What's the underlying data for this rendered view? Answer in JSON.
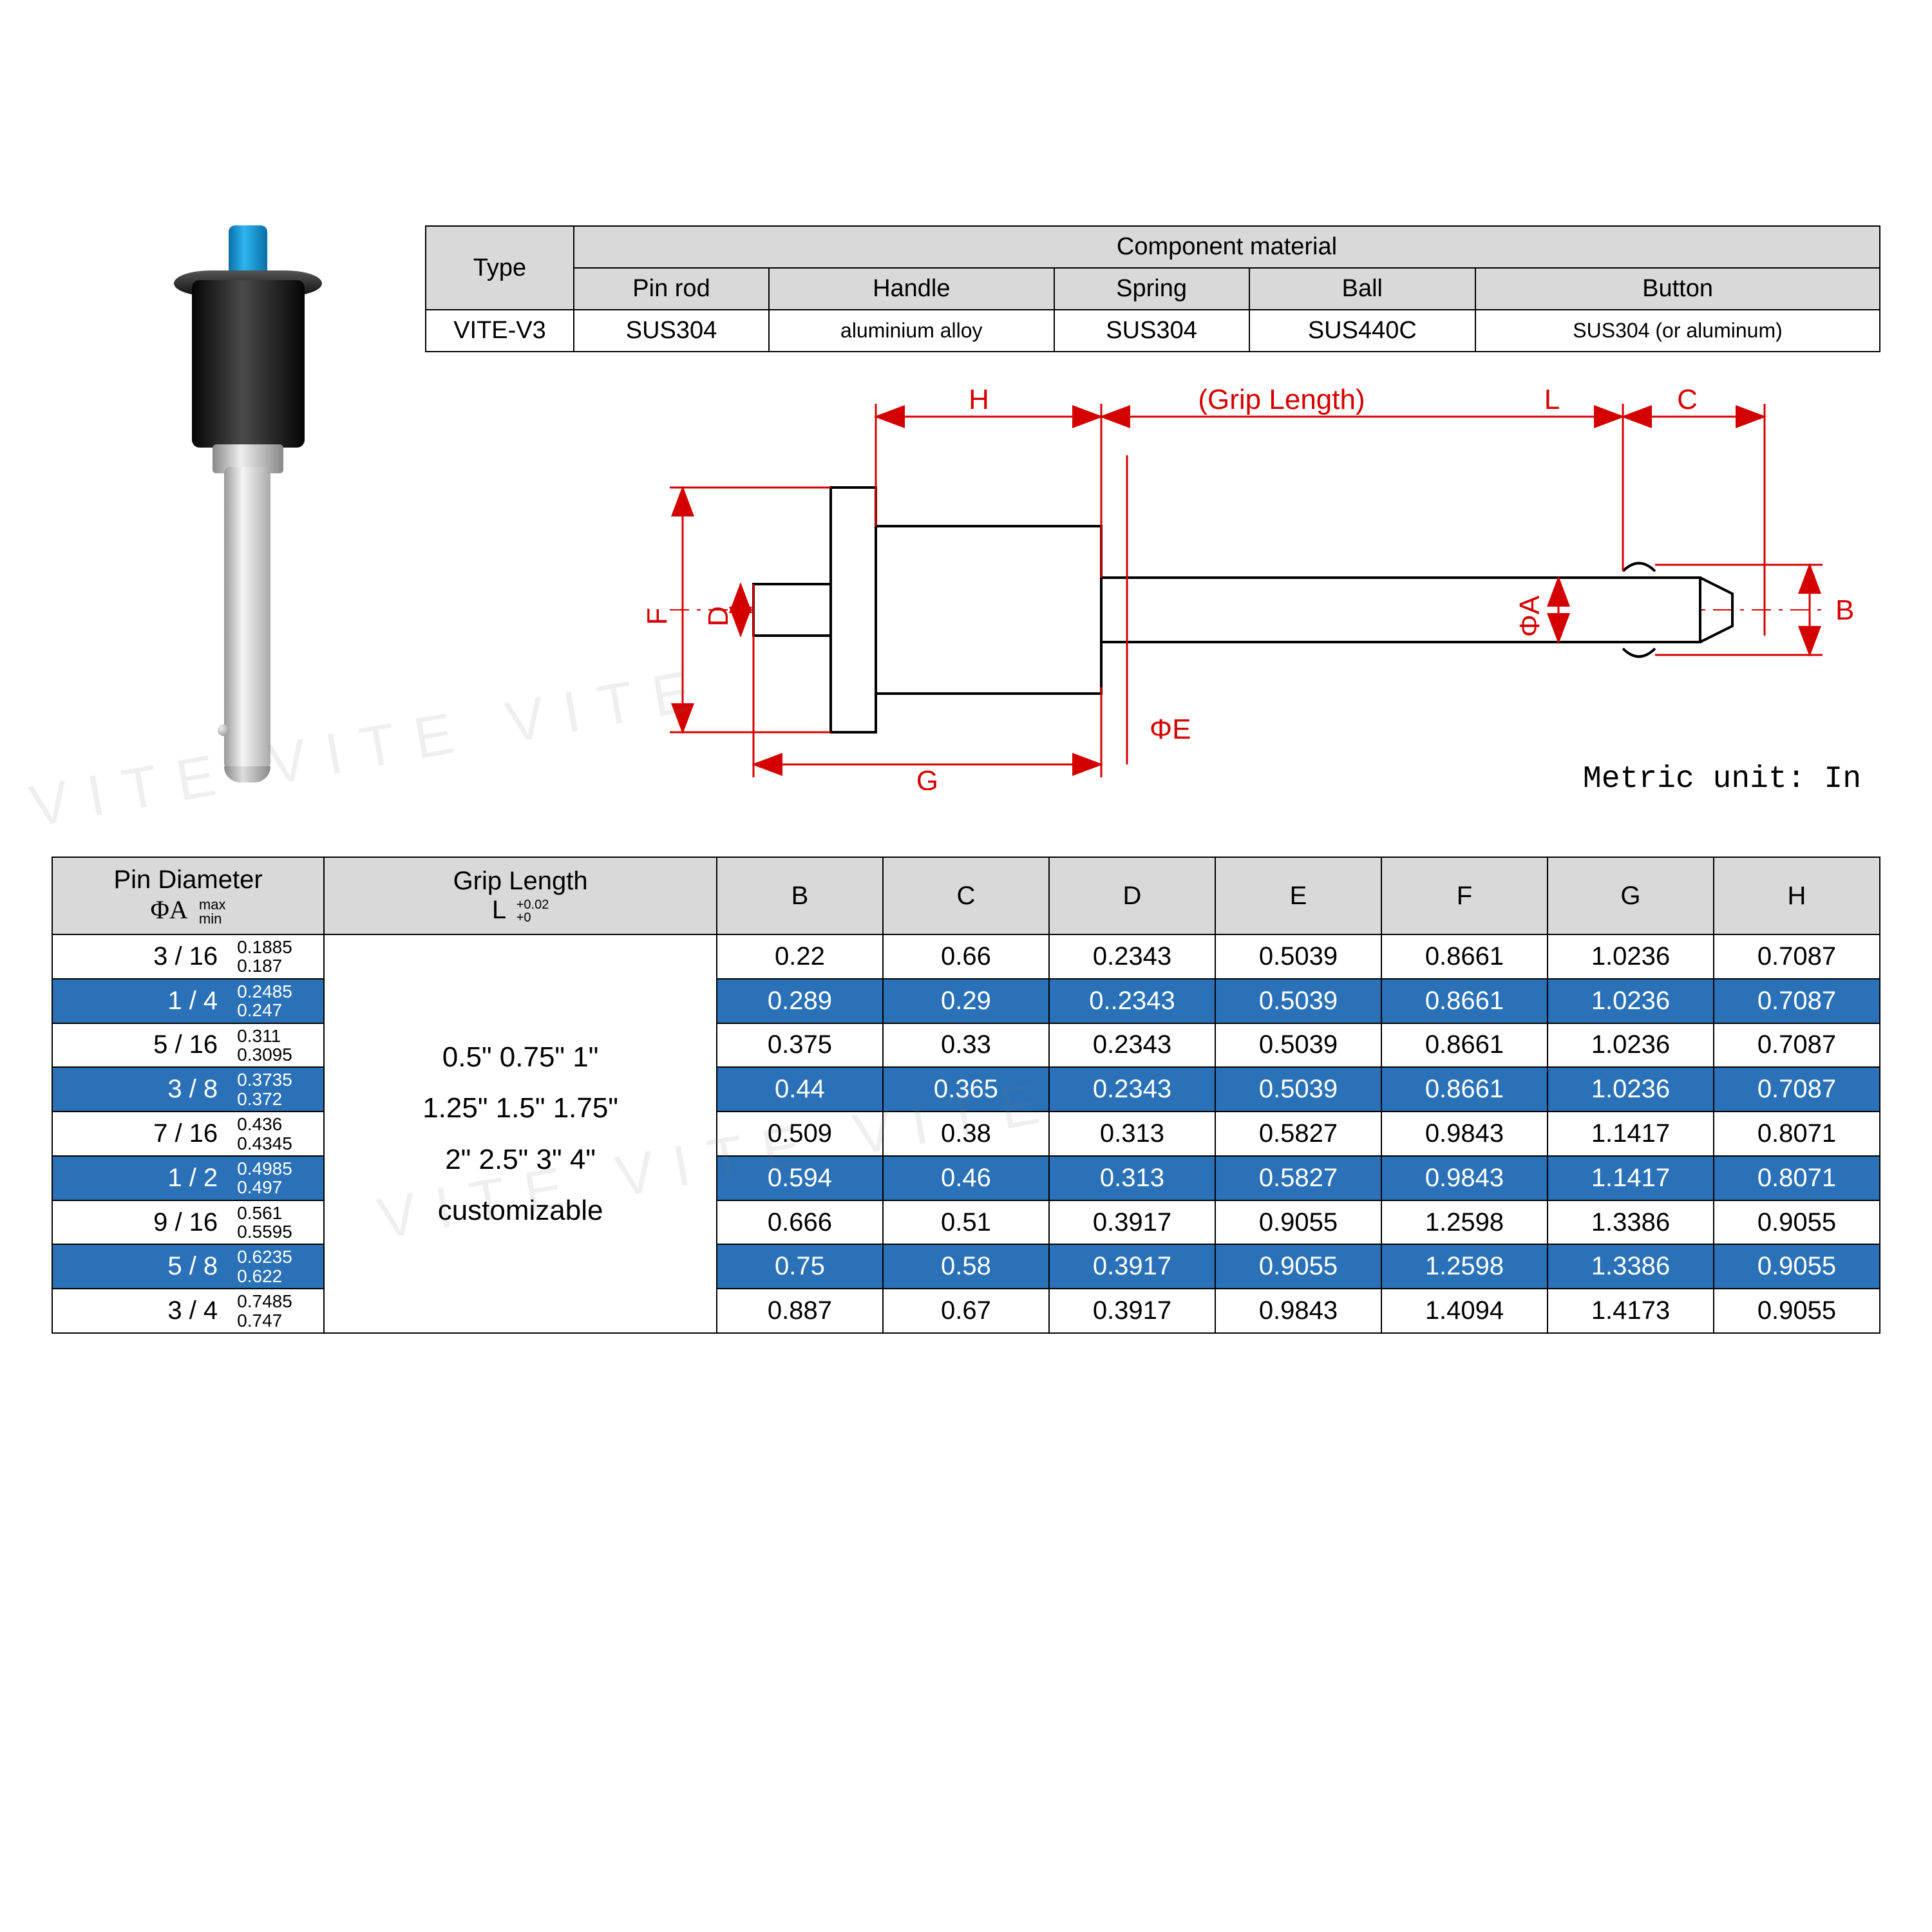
{
  "watermark_text": "VITE VITE VITE",
  "material_table": {
    "header_type": "Type",
    "header_group": "Component material",
    "cols": [
      "Pin rod",
      "Handle",
      "Spring",
      "Ball",
      "Button"
    ],
    "type_value": "VITE-V3",
    "values": [
      "SUS304",
      "aluminium alloy",
      "SUS304",
      "SUS440C",
      "SUS304 (or aluminum)"
    ]
  },
  "diagram": {
    "labels": {
      "H": "H",
      "GL": "(Grip Length)",
      "L": "L",
      "C": "C",
      "F": "F",
      "D": "D",
      "phiE": "ΦE",
      "phiA": "ΦA",
      "B": "B",
      "G": "G"
    },
    "line_color": "#d40000",
    "part_stroke": "#000000",
    "part_fill": "#ffffff"
  },
  "unit_label": "Metric unit: In",
  "dim_table": {
    "headers": {
      "pin_diameter": "Pin Diameter",
      "phiA": "ΦA",
      "phiA_sub_top": "max",
      "phiA_sub_bot": "min",
      "grip_length": "Grip Length",
      "L": "L",
      "L_sub_top": "+0.02",
      "L_sub_bot": "+0",
      "cols": [
        "B",
        "C",
        "D",
        "E",
        "F",
        "G",
        "H"
      ]
    },
    "grip_values": "0.5\"  0.75\"  1\"\n1.25\"  1.5\"  1.75\"\n2\"  2.5\"  3\"  4\"\ncustomizable",
    "stripe_color": "#2a71b8",
    "rows": [
      {
        "frac": "3 / 16",
        "max": "0.1885",
        "min": "0.187",
        "v": [
          "0.22",
          "0.66",
          "0.2343",
          "0.5039",
          "0.8661",
          "1.0236",
          "0.7087"
        ],
        "stripe": false
      },
      {
        "frac": "1 / 4",
        "max": "0.2485",
        "min": "0.247",
        "v": [
          "0.289",
          "0.29",
          "0..2343",
          "0.5039",
          "0.8661",
          "1.0236",
          "0.7087"
        ],
        "stripe": true
      },
      {
        "frac": "5 / 16",
        "max": "0.311",
        "min": "0.3095",
        "v": [
          "0.375",
          "0.33",
          "0.2343",
          "0.5039",
          "0.8661",
          "1.0236",
          "0.7087"
        ],
        "stripe": false
      },
      {
        "frac": "3 / 8",
        "max": "0.3735",
        "min": "0.372",
        "v": [
          "0.44",
          "0.365",
          "0.2343",
          "0.5039",
          "0.8661",
          "1.0236",
          "0.7087"
        ],
        "stripe": true
      },
      {
        "frac": "7 / 16",
        "max": "0.436",
        "min": "0.4345",
        "v": [
          "0.509",
          "0.38",
          "0.313",
          "0.5827",
          "0.9843",
          "1.1417",
          "0.8071"
        ],
        "stripe": false
      },
      {
        "frac": "1 / 2",
        "max": "0.4985",
        "min": "0.497",
        "v": [
          "0.594",
          "0.46",
          "0.313",
          "0.5827",
          "0.9843",
          "1.1417",
          "0.8071"
        ],
        "stripe": true
      },
      {
        "frac": "9 / 16",
        "max": "0.561",
        "min": "0.5595",
        "v": [
          "0.666",
          "0.51",
          "0.3917",
          "0.9055",
          "1.2598",
          "1.3386",
          "0.9055"
        ],
        "stripe": false
      },
      {
        "frac": "5 / 8",
        "max": "0.6235",
        "min": "0.622",
        "v": [
          "0.75",
          "0.58",
          "0.3917",
          "0.9055",
          "1.2598",
          "1.3386",
          "0.9055"
        ],
        "stripe": true
      },
      {
        "frac": "3 / 4",
        "max": "0.7485",
        "min": "0.747",
        "v": [
          "0.887",
          "0.67",
          "0.3917",
          "0.9843",
          "1.4094",
          "1.4173",
          "0.9055"
        ],
        "stripe": false
      }
    ]
  }
}
